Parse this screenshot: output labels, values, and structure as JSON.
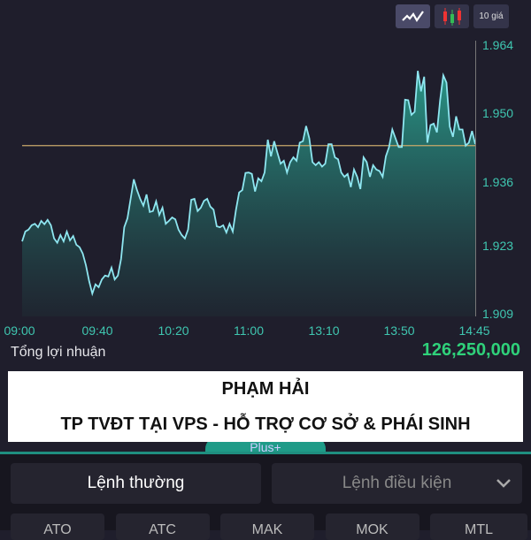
{
  "toolbar": {
    "line_chart": "line-chart-icon",
    "candle_chart": "candlestick-icon",
    "price_levels_label": "10 giá"
  },
  "chart_data": {
    "type": "area",
    "y_ticks": [
      "1.964",
      "1.950",
      "1.936",
      "1.923",
      "1.909"
    ],
    "ylim": [
      1.909,
      1.964
    ],
    "x_ticks": [
      "09:00",
      "09:40",
      "10:20",
      "11:00",
      "13:10",
      "13:50",
      "14:45"
    ],
    "reference_value": 1.9436,
    "colors": {
      "line": "#8ee6f0",
      "fill": "#1f8a7c",
      "reference": "#c9a96a",
      "axis": "#3fc6b0"
    },
    "values": [
      1.924,
      1.926,
      1.9264,
      1.9273,
      1.9276,
      1.9269,
      1.9282,
      1.9275,
      1.9284,
      1.9273,
      1.9246,
      1.9237,
      1.9253,
      1.924,
      1.926,
      1.9242,
      1.9251,
      1.9233,
      1.9228,
      1.9215,
      1.9191,
      1.9159,
      1.9133,
      1.9152,
      1.9146,
      1.9162,
      1.917,
      1.9168,
      1.9186,
      1.9162,
      1.917,
      1.9204,
      1.9269,
      1.9287,
      1.9327,
      1.9367,
      1.9345,
      1.9327,
      1.9313,
      1.9336,
      1.93,
      1.9302,
      1.9322,
      1.9294,
      1.9309,
      1.9276,
      1.9282,
      1.9289,
      1.9285,
      1.9264,
      1.9253,
      1.9246,
      1.9264,
      1.9325,
      1.9327,
      1.9302,
      1.9309,
      1.9323,
      1.9327,
      1.9311,
      1.9305,
      1.9271,
      1.9269,
      1.9273,
      1.9258,
      1.9276,
      1.926,
      1.9304,
      1.934,
      1.9345,
      1.938,
      1.9381,
      1.9378,
      1.9342,
      1.9369,
      1.9363,
      1.9381,
      1.9448,
      1.9414,
      1.9445,
      1.9421,
      1.9399,
      1.9405,
      1.9381,
      1.9402,
      1.9412,
      1.9405,
      1.9442,
      1.9445,
      1.9476,
      1.9451,
      1.9402,
      1.9396,
      1.9402,
      1.9393,
      1.9399,
      1.9439,
      1.9439,
      1.9412,
      1.9408,
      1.9381,
      1.9372,
      1.9378,
      1.9351,
      1.9387,
      1.9372,
      1.9347,
      1.9412,
      1.9402,
      1.9372,
      1.9396,
      1.9387,
      1.9384,
      1.9372,
      1.9414,
      1.9433,
      1.9469,
      1.9451,
      1.9433,
      1.9433,
      1.953,
      1.9529,
      1.9499,
      1.9505,
      1.9589,
      1.9547,
      1.9577,
      1.9442,
      1.9478,
      1.9481,
      1.9463,
      1.9529,
      1.958,
      1.9565,
      1.9475,
      1.9454,
      1.9496,
      1.9469,
      1.9469,
      1.9436,
      1.9442,
      1.9466,
      1.9439
    ]
  },
  "summary": {
    "label": "Tổng lợi nhuận",
    "value": "126,250,000"
  },
  "banner": {
    "line1": "PHẠM HẢI",
    "line2": "TP TVĐT TẠI VPS - HỖ TRỢ CƠ SỞ & PHÁI SINH"
  },
  "tab": {
    "label": "Plus+"
  },
  "order": {
    "normal": "Lệnh thường",
    "conditional": "Lệnh điều kiện"
  },
  "order_types": [
    "ATO",
    "ATC",
    "MAK",
    "MOK",
    "MTL"
  ]
}
